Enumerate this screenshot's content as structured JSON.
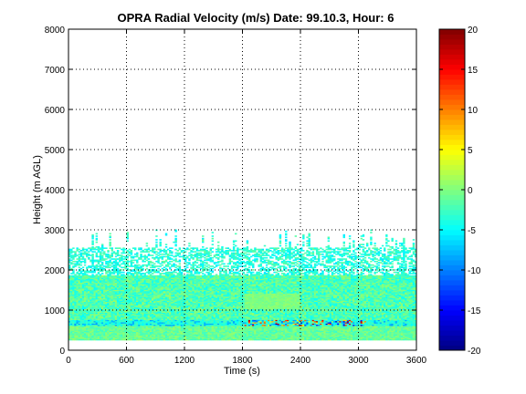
{
  "chart_data": {
    "type": "heatmap",
    "title": "OPRA Radial Velocity (m/s)  Date: 99.10.3, Hour: 6",
    "xlabel": "Time (s)",
    "ylabel": "Height (m AGL)",
    "xlim": [
      0,
      3600
    ],
    "ylim": [
      0,
      8000
    ],
    "xticks": [
      0,
      600,
      1200,
      1800,
      2400,
      3000,
      3600
    ],
    "yticks": [
      0,
      1000,
      2000,
      3000,
      4000,
      5000,
      6000,
      7000,
      8000
    ],
    "grid": true,
    "colormap": "jet",
    "colorbar": {
      "range": [
        -20,
        20
      ],
      "ticks": [
        -20,
        -15,
        -10,
        -5,
        0,
        5,
        10,
        15,
        20
      ]
    },
    "data_extent": {
      "x": [
        0,
        3600
      ],
      "height": [
        250,
        3000
      ],
      "dominant_velocity_range": [
        -7,
        1
      ]
    },
    "features": [
      {
        "name": "near-surface band",
        "height": [
          600,
          750
        ],
        "velocity_range": [
          -18,
          18
        ],
        "time": [
          1800,
          3100
        ]
      },
      {
        "name": "main echo layer",
        "height": [
          250,
          2550
        ],
        "velocity_range": [
          -6,
          1
        ]
      }
    ]
  },
  "colors": {
    "axes": "#000000",
    "background": "#ffffff",
    "grid": "#000000"
  }
}
